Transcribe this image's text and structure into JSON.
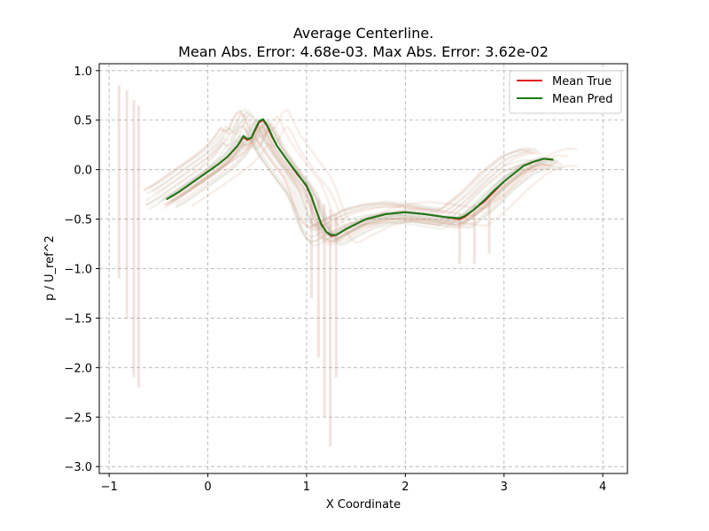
{
  "chart_data": {
    "type": "line",
    "title": "Average Centerline.",
    "subtitle": "Mean Abs. Error: 4.68e-03. Max Abs. Error: 3.62e-02",
    "xlabel": "X Coordinate",
    "ylabel": "p / U_ref^2",
    "xlim": [
      -1.1,
      4.25
    ],
    "ylim": [
      -3.07,
      1.07
    ],
    "xticks": [
      -1,
      0,
      1,
      2,
      3,
      4
    ],
    "yticks": [
      1.0,
      0.5,
      0.0,
      -0.5,
      -1.0,
      -1.5,
      -2.0,
      -2.5,
      -3.0
    ],
    "xtick_labels": [
      "−1",
      "0",
      "1",
      "2",
      "3",
      "4"
    ],
    "ytick_labels": [
      "1.0",
      "0.5",
      "0.0",
      "−0.5",
      "−1.0",
      "−1.5",
      "−2.0",
      "−2.5",
      "−3.0"
    ],
    "grid": true,
    "legend_position": "top-right",
    "series": [
      {
        "name": "Mean True",
        "color": "#e41a1c",
        "x": [
          -0.42,
          -0.3,
          -0.2,
          -0.1,
          0.0,
          0.1,
          0.2,
          0.3,
          0.36,
          0.4,
          0.44,
          0.48,
          0.52,
          0.56,
          0.6,
          0.65,
          0.7,
          0.8,
          0.9,
          0.95,
          1.0,
          1.05,
          1.1,
          1.15,
          1.2,
          1.25,
          1.3,
          1.4,
          1.6,
          1.8,
          2.0,
          2.2,
          2.4,
          2.55,
          2.6,
          2.7,
          2.8,
          2.9,
          3.0,
          3.1,
          3.2,
          3.3,
          3.4,
          3.5
        ],
        "y": [
          -0.3,
          -0.23,
          -0.16,
          -0.09,
          -0.02,
          0.05,
          0.13,
          0.24,
          0.33,
          0.3,
          0.32,
          0.4,
          0.48,
          0.5,
          0.44,
          0.33,
          0.24,
          0.1,
          -0.04,
          -0.1,
          -0.17,
          -0.28,
          -0.42,
          -0.55,
          -0.63,
          -0.67,
          -0.66,
          -0.6,
          -0.5,
          -0.45,
          -0.43,
          -0.45,
          -0.48,
          -0.5,
          -0.48,
          -0.4,
          -0.32,
          -0.22,
          -0.12,
          -0.04,
          0.04,
          0.08,
          0.11,
          0.1
        ]
      },
      {
        "name": "Mean Pred",
        "color": "#1a7a1a",
        "x": [
          -0.42,
          -0.3,
          -0.2,
          -0.1,
          0.0,
          0.1,
          0.2,
          0.3,
          0.36,
          0.4,
          0.44,
          0.48,
          0.52,
          0.56,
          0.6,
          0.65,
          0.7,
          0.8,
          0.9,
          0.95,
          1.0,
          1.05,
          1.1,
          1.15,
          1.2,
          1.25,
          1.3,
          1.4,
          1.6,
          1.8,
          2.0,
          2.2,
          2.4,
          2.55,
          2.6,
          2.7,
          2.8,
          2.9,
          3.0,
          3.1,
          3.2,
          3.3,
          3.4,
          3.5
        ],
        "y": [
          -0.3,
          -0.23,
          -0.16,
          -0.09,
          -0.02,
          0.05,
          0.13,
          0.24,
          0.34,
          0.31,
          0.32,
          0.41,
          0.49,
          0.51,
          0.45,
          0.34,
          0.24,
          0.1,
          -0.03,
          -0.1,
          -0.16,
          -0.27,
          -0.42,
          -0.56,
          -0.63,
          -0.66,
          -0.66,
          -0.6,
          -0.5,
          -0.45,
          -0.43,
          -0.45,
          -0.48,
          -0.49,
          -0.47,
          -0.4,
          -0.31,
          -0.21,
          -0.12,
          -0.04,
          0.04,
          0.08,
          0.11,
          0.1
        ]
      }
    ]
  }
}
